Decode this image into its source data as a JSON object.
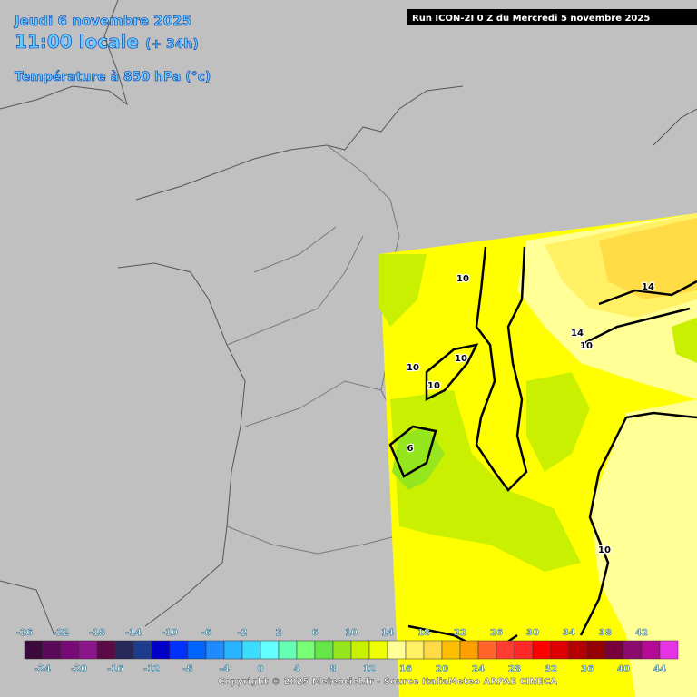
{
  "header": {
    "date": "Jeudi 6 novembre 2025",
    "time": "11:00 locale",
    "lead": "(+ 34h)",
    "parameter": "Température à 850 hPa (°c)",
    "run": "Run ICON-2I 0 Z du Mercredi 5 novembre 2025"
  },
  "map": {
    "contour_labels": [
      "10",
      "10",
      "10",
      "10",
      "6",
      "14",
      "14",
      "10",
      "10"
    ]
  },
  "legend": {
    "values": [
      -26,
      -24,
      -22,
      -20,
      -18,
      -16,
      -14,
      -12,
      -10,
      -8,
      -6,
      -4,
      -2,
      0,
      2,
      4,
      6,
      8,
      10,
      12,
      14,
      16,
      18,
      20,
      22,
      24,
      26,
      28,
      30,
      32,
      34,
      36,
      38,
      40,
      42,
      44
    ],
    "colors": [
      "#3c0a3c",
      "#5a0a5a",
      "#780a78",
      "#8c148c",
      "#5a0a46",
      "#28285a",
      "#1e3c8c",
      "#0000c8",
      "#0032ff",
      "#0064ff",
      "#1e8cff",
      "#28b4ff",
      "#3cdcff",
      "#64ffff",
      "#64ffb4",
      "#78ff78",
      "#64e646",
      "#96e61e",
      "#c8f000",
      "#f0ff00",
      "#ffff96",
      "#fff064",
      "#ffdc46",
      "#ffbe00",
      "#ffa000",
      "#ff6428",
      "#ff3c32",
      "#ff2828",
      "#ff0000",
      "#dc0000",
      "#b40000",
      "#960000",
      "#78003c",
      "#8c0a6e",
      "#b40a96",
      "#e632e6"
    ]
  },
  "footer": {
    "copyright": "Copyright © 2025 Meteociel.fr - Source ItaliaMeteo ARPAE CINECA"
  }
}
